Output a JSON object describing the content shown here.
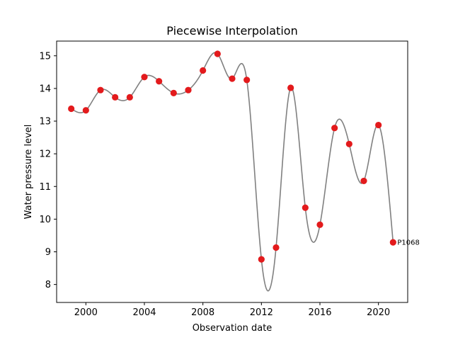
{
  "chart_data": {
    "type": "line",
    "title": "Piecewise Interpolation",
    "xlabel": "Observation date",
    "ylabel": "Water pressure level",
    "xlim": [
      1998,
      2022
    ],
    "ylim": [
      7.45,
      15.45
    ],
    "x_ticks": [
      2000,
      2004,
      2008,
      2012,
      2016,
      2020
    ],
    "x_tick_labels": [
      "2000",
      "2004",
      "2008",
      "2012",
      "2016",
      "2020"
    ],
    "y_ticks": [
      8,
      9,
      10,
      11,
      12,
      13,
      14,
      15
    ],
    "y_tick_labels": [
      "8",
      "9",
      "10",
      "11",
      "12",
      "13",
      "14",
      "15"
    ],
    "grid": false,
    "series": [
      {
        "line_color": "#808080",
        "marker_color": "#e31a1c",
        "points": [
          {
            "x": 1999,
            "y": 13.38
          },
          {
            "x": 2000,
            "y": 13.33
          },
          {
            "x": 2001,
            "y": 13.95
          },
          {
            "x": 2002,
            "y": 13.73
          },
          {
            "x": 2003,
            "y": 13.73
          },
          {
            "x": 2004,
            "y": 14.35
          },
          {
            "x": 2005,
            "y": 14.22
          },
          {
            "x": 2006,
            "y": 13.86
          },
          {
            "x": 2007,
            "y": 13.95
          },
          {
            "x": 2008,
            "y": 14.55
          },
          {
            "x": 2009,
            "y": 15.06
          },
          {
            "x": 2010,
            "y": 14.3
          },
          {
            "x": 2011,
            "y": 14.26
          },
          {
            "x": 2012,
            "y": 8.77
          },
          {
            "x": 2013,
            "y": 9.13
          },
          {
            "x": 2014,
            "y": 14.02
          },
          {
            "x": 2015,
            "y": 10.35
          },
          {
            "x": 2016,
            "y": 9.83
          },
          {
            "x": 2017,
            "y": 12.79
          },
          {
            "x": 2018,
            "y": 12.3
          },
          {
            "x": 2019,
            "y": 11.17
          },
          {
            "x": 2020,
            "y": 12.88
          },
          {
            "x": 2021,
            "y": 9.29
          }
        ]
      }
    ],
    "annotations": [
      {
        "text": "P1068",
        "x": 2021,
        "y": 9.29
      }
    ]
  }
}
